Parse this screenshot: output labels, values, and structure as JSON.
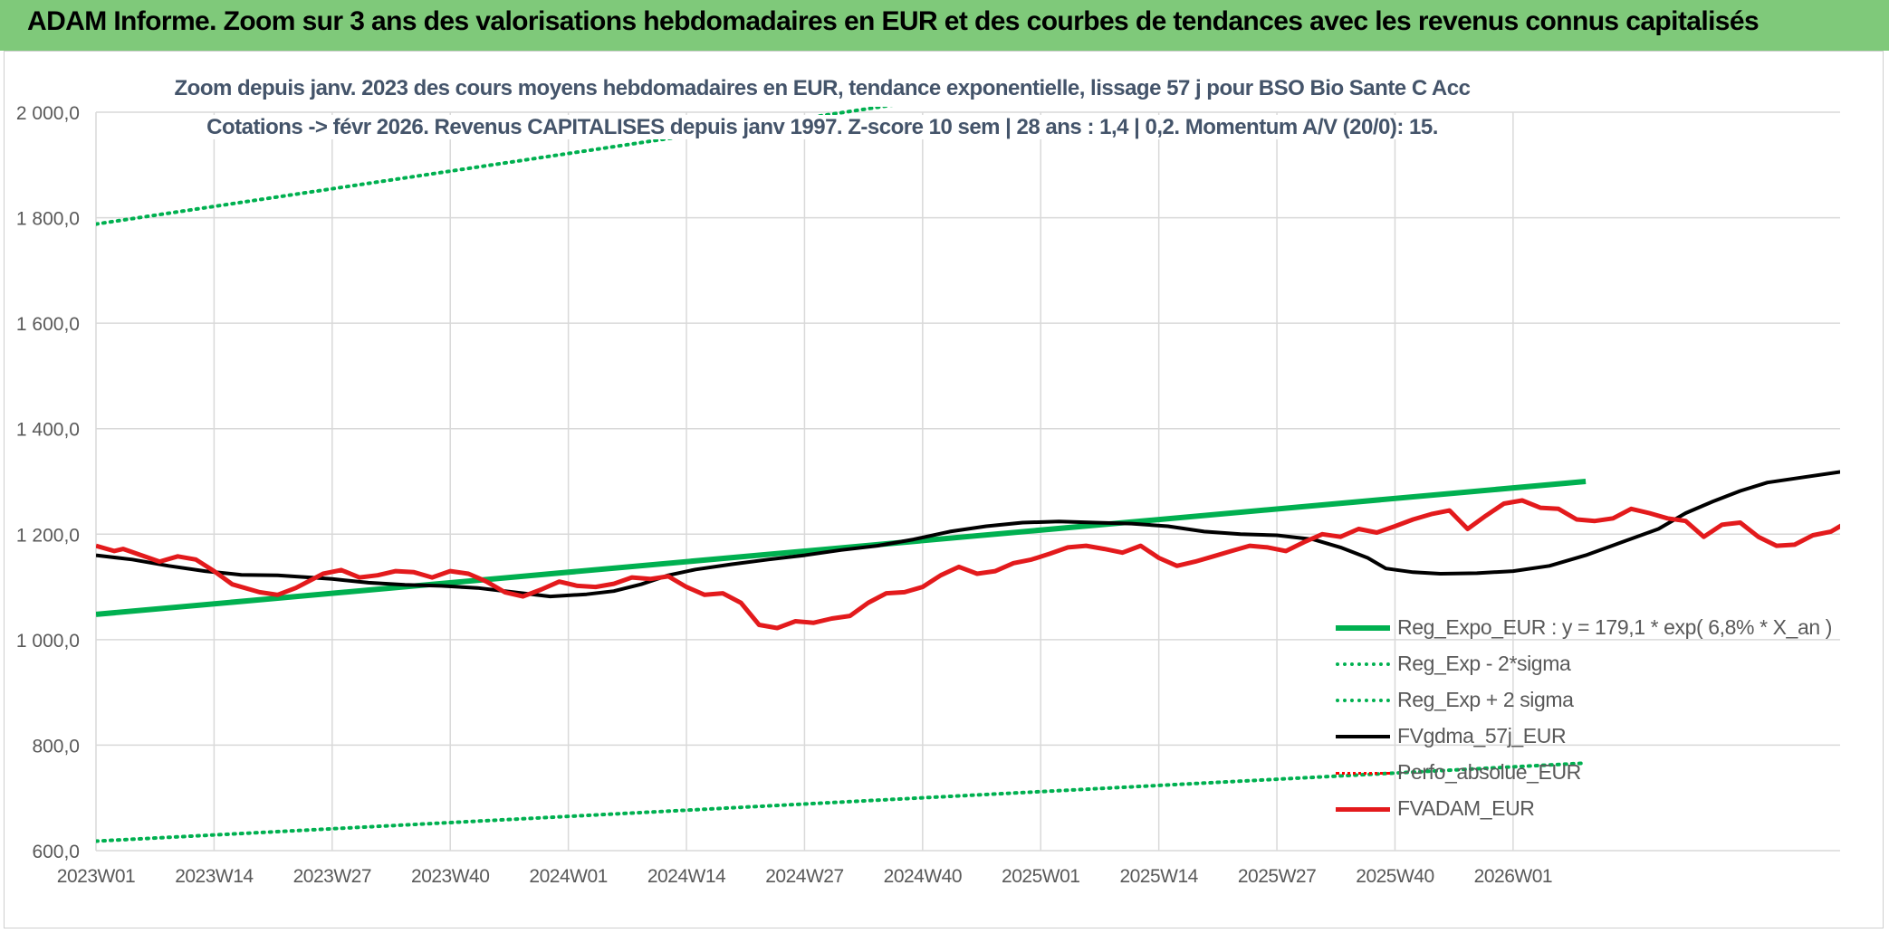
{
  "header": {
    "title": "ADAM Informe. Zoom sur 3 ans des valorisations hebdomadaires en EUR et des courbes de tendances avec les revenus connus capitalisés"
  },
  "chart_data": {
    "type": "line",
    "title": "Zoom depuis janv. 2023 des cours moyens hebdomadaires en EUR, tendance exponentielle, lissage 57 j pour BSO Bio Sante C Acc",
    "subtitle": "Cotations -> févr 2026. Revenus CAPITALISES depuis janv 1997. Z-score 10 sem | 28 ans : 1,4 | 0,2. Momentum A/V (20/0): 15.",
    "xlabel": "",
    "ylabel": "",
    "ylim": [
      600,
      2000
    ],
    "yticks": [
      "2 000,0",
      "1 800,0",
      "1 600,0",
      "1 400,0",
      "1 200,0",
      "1 000,0",
      "800,0",
      "600,0"
    ],
    "ytick_values": [
      2000,
      1800,
      1600,
      1400,
      1200,
      1000,
      800,
      600
    ],
    "xticks": [
      "2023W01",
      "2023W14",
      "2023W27",
      "2023W40",
      "2024W01",
      "2024W14",
      "2024W27",
      "2024W40",
      "2025W01",
      "2025W14",
      "2025W27",
      "2025W40",
      "2026W01"
    ],
    "grid": true,
    "legend_position": "bottom-right",
    "series": [
      {
        "name": "Reg_Expo_EUR : y = 179,1 * exp( 6,8% *  X_an )",
        "color": "#00b050",
        "style": "solid",
        "width": 6,
        "points": [
          [
            0,
            1048
          ],
          [
            164,
            1300
          ]
        ]
      },
      {
        "name": "Reg_Exp - 2*sigma",
        "color": "#00b050",
        "style": "dotted",
        "width": 4,
        "points": [
          [
            0,
            618
          ],
          [
            164,
            766
          ]
        ]
      },
      {
        "name": "Reg_Exp + 2 sigma",
        "color": "#00b050",
        "style": "dotted",
        "width": 4,
        "points": [
          [
            0,
            1788
          ],
          [
            164,
            2210
          ]
        ]
      },
      {
        "name": "FVgdma_57j_EUR",
        "color": "#000000",
        "style": "solid",
        "width": 4,
        "points": [
          [
            0,
            1160
          ],
          [
            4,
            1152
          ],
          [
            8,
            1140
          ],
          [
            12,
            1130
          ],
          [
            16,
            1123
          ],
          [
            20,
            1122
          ],
          [
            26,
            1115
          ],
          [
            30,
            1108
          ],
          [
            34,
            1104
          ],
          [
            38,
            1102
          ],
          [
            42,
            1098
          ],
          [
            46,
            1090
          ],
          [
            50,
            1082
          ],
          [
            54,
            1086
          ],
          [
            57,
            1092
          ],
          [
            60,
            1105
          ],
          [
            63,
            1122
          ],
          [
            66,
            1133
          ],
          [
            70,
            1143
          ],
          [
            74,
            1152
          ],
          [
            78,
            1160
          ],
          [
            82,
            1170
          ],
          [
            86,
            1178
          ],
          [
            90,
            1190
          ],
          [
            94,
            1205
          ],
          [
            98,
            1215
          ],
          [
            102,
            1222
          ],
          [
            106,
            1224
          ],
          [
            110,
            1222
          ],
          [
            114,
            1220
          ],
          [
            118,
            1215
          ],
          [
            122,
            1205
          ],
          [
            126,
            1200
          ],
          [
            130,
            1198
          ],
          [
            134,
            1190
          ],
          [
            137,
            1175
          ],
          [
            140,
            1155
          ],
          [
            142,
            1135
          ],
          [
            145,
            1128
          ],
          [
            148,
            1125
          ],
          [
            152,
            1126
          ],
          [
            156,
            1130
          ],
          [
            160,
            1140
          ],
          [
            164,
            1160
          ],
          [
            168,
            1185
          ],
          [
            172,
            1210
          ],
          [
            175,
            1240
          ],
          [
            178,
            1262
          ],
          [
            181,
            1282
          ],
          [
            184,
            1298
          ],
          [
            188,
            1308
          ],
          [
            192,
            1318
          ],
          [
            196,
            1330
          ],
          [
            199,
            1342
          ]
        ]
      },
      {
        "name": "Perfo_absolue_EUR",
        "color": "#ff0000",
        "style": "dotted",
        "width": 3,
        "points": []
      },
      {
        "name": "FVADAM_EUR",
        "color": "#e31a1c",
        "style": "solid",
        "width": 5,
        "points": [
          [
            0,
            1178
          ],
          [
            2,
            1168
          ],
          [
            3,
            1172
          ],
          [
            5,
            1160
          ],
          [
            7,
            1148
          ],
          [
            9,
            1158
          ],
          [
            11,
            1152
          ],
          [
            13,
            1130
          ],
          [
            15,
            1105
          ],
          [
            18,
            1090
          ],
          [
            20,
            1085
          ],
          [
            22,
            1098
          ],
          [
            25,
            1125
          ],
          [
            27,
            1132
          ],
          [
            29,
            1118
          ],
          [
            31,
            1122
          ],
          [
            33,
            1130
          ],
          [
            35,
            1128
          ],
          [
            37,
            1118
          ],
          [
            39,
            1130
          ],
          [
            41,
            1125
          ],
          [
            43,
            1110
          ],
          [
            45,
            1090
          ],
          [
            47,
            1082
          ],
          [
            49,
            1095
          ],
          [
            51,
            1110
          ],
          [
            53,
            1102
          ],
          [
            55,
            1100
          ],
          [
            57,
            1106
          ],
          [
            59,
            1118
          ],
          [
            61,
            1115
          ],
          [
            63,
            1120
          ],
          [
            65,
            1100
          ],
          [
            67,
            1085
          ],
          [
            69,
            1088
          ],
          [
            71,
            1070
          ],
          [
            73,
            1028
          ],
          [
            75,
            1022
          ],
          [
            77,
            1035
          ],
          [
            79,
            1032
          ],
          [
            81,
            1040
          ],
          [
            83,
            1045
          ],
          [
            85,
            1070
          ],
          [
            87,
            1088
          ],
          [
            89,
            1090
          ],
          [
            91,
            1100
          ],
          [
            93,
            1122
          ],
          [
            95,
            1138
          ],
          [
            97,
            1125
          ],
          [
            99,
            1130
          ],
          [
            101,
            1145
          ],
          [
            103,
            1152
          ],
          [
            105,
            1163
          ],
          [
            107,
            1175
          ],
          [
            109,
            1178
          ],
          [
            111,
            1172
          ],
          [
            113,
            1165
          ],
          [
            115,
            1178
          ],
          [
            117,
            1155
          ],
          [
            119,
            1140
          ],
          [
            121,
            1148
          ],
          [
            123,
            1158
          ],
          [
            125,
            1168
          ],
          [
            127,
            1178
          ],
          [
            129,
            1175
          ],
          [
            131,
            1168
          ],
          [
            133,
            1185
          ],
          [
            135,
            1200
          ],
          [
            137,
            1195
          ],
          [
            139,
            1210
          ],
          [
            141,
            1203
          ],
          [
            143,
            1215
          ],
          [
            145,
            1228
          ],
          [
            147,
            1238
          ],
          [
            149,
            1245
          ],
          [
            151,
            1210
          ],
          [
            153,
            1235
          ],
          [
            155,
            1258
          ],
          [
            157,
            1264
          ],
          [
            159,
            1250
          ],
          [
            161,
            1248
          ],
          [
            163,
            1228
          ],
          [
            165,
            1225
          ],
          [
            167,
            1230
          ],
          [
            169,
            1248
          ],
          [
            171,
            1240
          ],
          [
            173,
            1230
          ],
          [
            175,
            1225
          ],
          [
            177,
            1195
          ],
          [
            179,
            1218
          ],
          [
            181,
            1222
          ],
          [
            183,
            1195
          ],
          [
            185,
            1178
          ],
          [
            187,
            1180
          ],
          [
            189,
            1198
          ],
          [
            191,
            1205
          ],
          [
            193,
            1225
          ],
          [
            195,
            1240
          ],
          [
            197,
            1230
          ],
          [
            199,
            1242
          ],
          [
            201,
            1230
          ]
        ]
      }
    ]
  }
}
